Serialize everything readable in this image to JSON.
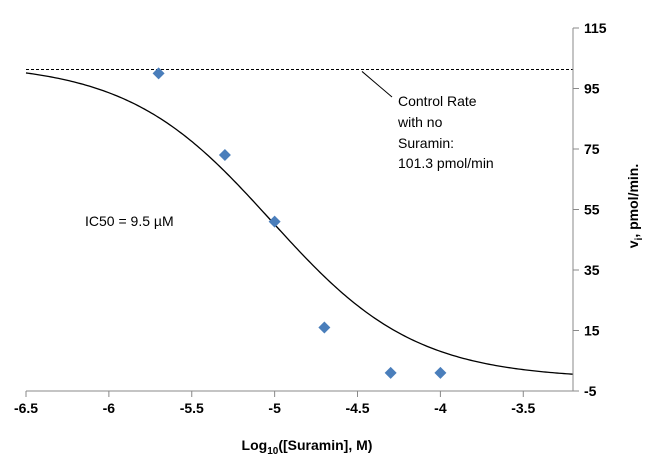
{
  "chart_data": {
    "type": "scatter",
    "title": "",
    "xlabel": {
      "main": "Log",
      "sub": "10",
      "rest": "([Suramin], M)"
    },
    "ylabel": {
      "main": "v",
      "sub": "i",
      "rest": ", pmol/min."
    },
    "xlim": [
      -6.5,
      -3.2
    ],
    "ylim": [
      -5,
      115
    ],
    "xticks": [
      -6.5,
      -6,
      -5.5,
      -5,
      -4.5,
      -4,
      -3.5
    ],
    "xtick_labels": [
      "-6.5",
      "-6",
      "-5.5",
      "-5",
      "-4.5",
      "-4",
      "-3.5"
    ],
    "yticks": [
      -5,
      15,
      35,
      55,
      75,
      95,
      115
    ],
    "ytick_labels": [
      "-5",
      "15",
      "35",
      "55",
      "75",
      "95",
      "115"
    ],
    "y_axis_side": "right",
    "grid": false,
    "legend": "none",
    "series": [
      {
        "kind": "points",
        "marker": "diamond",
        "color": "#4a7ebb",
        "x": [
          -5.7,
          -5.3,
          -5.0,
          -4.7,
          -4.3,
          -4.0
        ],
        "y": [
          100,
          73,
          51,
          16,
          1,
          1
        ]
      },
      {
        "kind": "fit-curve",
        "color": "#000000",
        "model": "four-parameter logistic",
        "top": 103.5,
        "bottom": -1,
        "log_ic50": -5.02,
        "hill": 1.0
      },
      {
        "kind": "reference-line",
        "style": "dashed",
        "color": "#000000",
        "y": 101.3
      }
    ],
    "annotations": {
      "control_lines": [
        "Control Rate",
        "with no",
        "Suramin:",
        "101.3 pmol/min"
      ],
      "ic50": "IC50 = 9.5 µM"
    }
  }
}
